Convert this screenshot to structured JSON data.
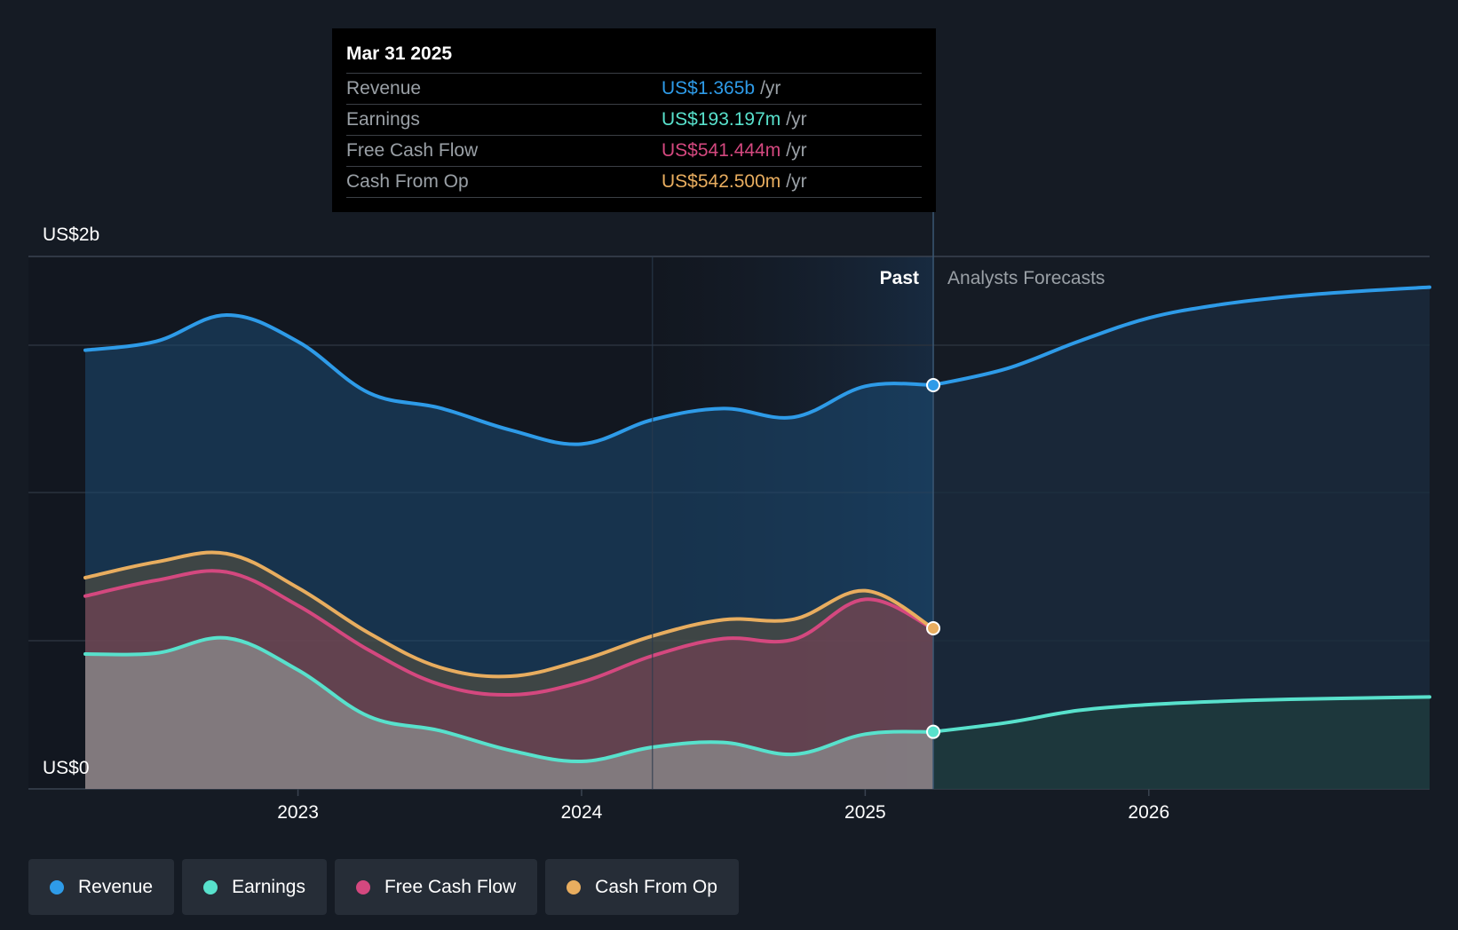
{
  "chart_data": {
    "type": "area",
    "y_axis": {
      "max_label": "US$2b",
      "min_label": "US$0",
      "ylim": [
        0,
        1.8
      ]
    },
    "x_axis": {
      "ticks": [
        "2023",
        "2024",
        "2025",
        "2026"
      ],
      "range": [
        2022.25,
        2026.99
      ]
    },
    "divider": {
      "x": 2025.24,
      "past_label": "Past",
      "forecast_label": "Analysts Forecasts"
    },
    "series": [
      {
        "name": "Revenue",
        "color": "#2e9be8",
        "past": [
          [
            2022.25,
            1.483
          ],
          [
            2022.5,
            1.513
          ],
          [
            2022.75,
            1.602
          ],
          [
            2023.0,
            1.512
          ],
          [
            2023.25,
            1.339
          ],
          [
            2023.5,
            1.288
          ],
          [
            2023.75,
            1.213
          ],
          [
            2024.0,
            1.166
          ],
          [
            2024.25,
            1.248
          ],
          [
            2024.5,
            1.286
          ],
          [
            2024.75,
            1.257
          ],
          [
            2025.0,
            1.361
          ],
          [
            2025.24,
            1.365
          ]
        ],
        "forecast": [
          [
            2025.24,
            1.365
          ],
          [
            2025.5,
            1.421
          ],
          [
            2025.75,
            1.512
          ],
          [
            2026.0,
            1.592
          ],
          [
            2026.25,
            1.637
          ],
          [
            2026.5,
            1.665
          ],
          [
            2026.75,
            1.683
          ],
          [
            2026.99,
            1.696
          ]
        ]
      },
      {
        "name": "Earnings",
        "color": "#58e1cc",
        "past": [
          [
            2022.25,
            0.456
          ],
          [
            2022.5,
            0.459
          ],
          [
            2022.75,
            0.51
          ],
          [
            2023.0,
            0.402
          ],
          [
            2023.25,
            0.245
          ],
          [
            2023.5,
            0.197
          ],
          [
            2023.75,
            0.13
          ],
          [
            2024.0,
            0.093
          ],
          [
            2024.25,
            0.141
          ],
          [
            2024.5,
            0.157
          ],
          [
            2024.75,
            0.117
          ],
          [
            2025.0,
            0.185
          ],
          [
            2025.24,
            0.193
          ]
        ],
        "forecast": [
          [
            2025.24,
            0.193
          ],
          [
            2025.5,
            0.224
          ],
          [
            2025.75,
            0.265
          ],
          [
            2026.0,
            0.285
          ],
          [
            2026.25,
            0.296
          ],
          [
            2026.5,
            0.303
          ],
          [
            2026.75,
            0.307
          ],
          [
            2026.99,
            0.311
          ]
        ]
      },
      {
        "name": "Free Cash Flow",
        "color": "#d4487f",
        "past": [
          [
            2022.25,
            0.652
          ],
          [
            2022.5,
            0.705
          ],
          [
            2022.75,
            0.733
          ],
          [
            2023.0,
            0.62
          ],
          [
            2023.25,
            0.469
          ],
          [
            2023.5,
            0.353
          ],
          [
            2023.75,
            0.318
          ],
          [
            2024.0,
            0.361
          ],
          [
            2024.25,
            0.45
          ],
          [
            2024.5,
            0.508
          ],
          [
            2024.75,
            0.506
          ],
          [
            2025.0,
            0.641
          ],
          [
            2025.24,
            0.541
          ]
        ],
        "forecast": []
      },
      {
        "name": "Cash From Op",
        "color": "#e8ad5f",
        "past": [
          [
            2022.25,
            0.714
          ],
          [
            2022.5,
            0.767
          ],
          [
            2022.75,
            0.795
          ],
          [
            2023.0,
            0.68
          ],
          [
            2023.25,
            0.527
          ],
          [
            2023.5,
            0.411
          ],
          [
            2023.75,
            0.381
          ],
          [
            2024.0,
            0.435
          ],
          [
            2024.25,
            0.517
          ],
          [
            2024.5,
            0.572
          ],
          [
            2024.75,
            0.574
          ],
          [
            2025.0,
            0.67
          ],
          [
            2025.24,
            0.543
          ]
        ],
        "forecast": []
      }
    ]
  },
  "tooltip": {
    "date": "Mar 31 2025",
    "rows": [
      {
        "label": "Revenue",
        "value": "US$1.365b",
        "unit": "/yr",
        "color": "#2e9be8"
      },
      {
        "label": "Earnings",
        "value": "US$193.197m",
        "unit": "/yr",
        "color": "#58e1cc"
      },
      {
        "label": "Free Cash Flow",
        "value": "US$541.444m",
        "unit": "/yr",
        "color": "#d4487f"
      },
      {
        "label": "Cash From Op",
        "value": "US$542.500m",
        "unit": "/yr",
        "color": "#e8ad5f"
      }
    ]
  },
  "legend": [
    {
      "label": "Revenue",
      "color": "#2e9be8"
    },
    {
      "label": "Earnings",
      "color": "#58e1cc"
    },
    {
      "label": "Free Cash Flow",
      "color": "#d4487f"
    },
    {
      "label": "Cash From Op",
      "color": "#e8ad5f"
    }
  ]
}
